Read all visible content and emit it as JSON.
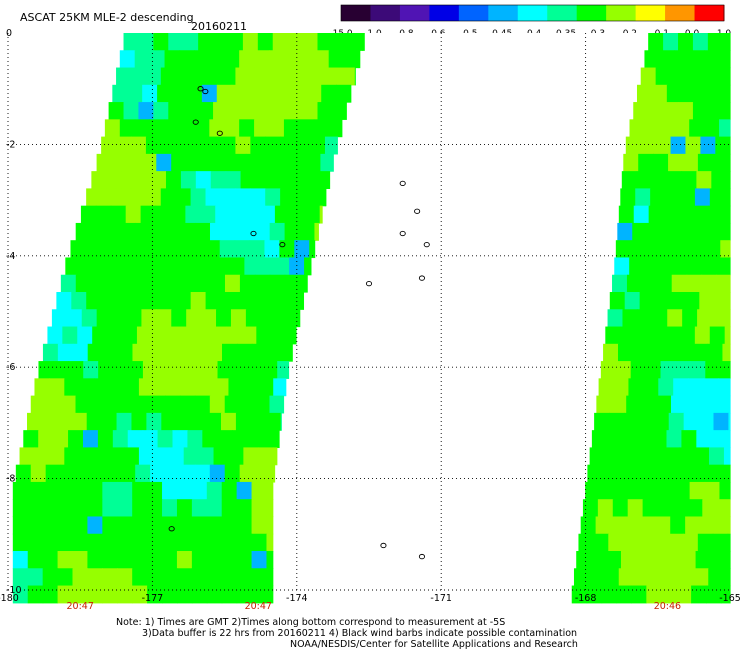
{
  "header": {
    "title": "ASCAT 25KM MLE-2 descending",
    "date": "20160211"
  },
  "colorbar": {
    "labels": [
      "-15.0",
      "-1.0",
      "-0.8",
      "-0.6",
      "-0.5",
      "-0.45",
      "-0.4",
      "-0.35",
      "-0.3",
      "-0.2",
      "-0.1",
      "0.0",
      "1.0"
    ],
    "colors": [
      "#280032",
      "#3c0a78",
      "#5014b4",
      "#0000e6",
      "#0064ff",
      "#00b4ff",
      "#00ffff",
      "#00ff96",
      "#00ff00",
      "#96ff00",
      "#ffff00",
      "#ff9600",
      "#ff0000"
    ]
  },
  "footer": {
    "note_line1": "Note: 1) Times are GMT 2)Times along bottom correspond to measurement at -5S",
    "note_line2": "3)Data buffer is 22 hrs from 20160211 4) Black wind barbs indicate possible contamination",
    "note_line3": "NOAA/NESDIS/Center for Satellite Applications and Research"
  },
  "chart_data": {
    "type": "heatmap",
    "title": "ASCAT 25KM MLE-2 descending",
    "subtitle": "20160211",
    "x_ticks": [
      -180,
      -177,
      -174,
      -171,
      -168,
      -165
    ],
    "x_tick_labels": [
      "-180",
      "-177",
      "-174",
      "-171",
      "-168",
      "-165"
    ],
    "y_ticks": [
      0,
      -2,
      -4,
      -6,
      -8,
      -10
    ],
    "y_tick_labels": [
      "0",
      "-2",
      "-4",
      "-6",
      "-8",
      "-10"
    ],
    "xlim": [
      -180,
      -165
    ],
    "ylim": [
      -10,
      0
    ],
    "grid": true,
    "time_labels": [
      {
        "lon": -178.5,
        "text": "20:47"
      },
      {
        "lon": -174.8,
        "text": "20:47"
      },
      {
        "lon": -166.3,
        "text": "20:46"
      }
    ],
    "swaths": [
      {
        "edges": [
          [
            0,
            -177.6,
            -172.6
          ],
          [
            -2,
            -178.1,
            -173.2
          ],
          [
            -4,
            -178.8,
            -173.7
          ],
          [
            -6,
            -179.4,
            -174.2
          ],
          [
            -8,
            -179.9,
            -174.5
          ],
          [
            -10,
            -179.9,
            -174.5
          ]
        ]
      },
      {
        "edges": [
          [
            0,
            -166.7,
            -165.0
          ],
          [
            -2,
            -167.2,
            -165.0
          ],
          [
            -4,
            -167.4,
            -165.0
          ],
          [
            -6,
            -167.7,
            -165.0
          ],
          [
            -8,
            -168.0,
            -165.0
          ],
          [
            -10,
            -168.3,
            -165.0
          ]
        ]
      }
    ],
    "islands": [
      [
        -176.0,
        -1.0
      ],
      [
        -175.9,
        -1.05
      ],
      [
        -176.1,
        -1.6
      ],
      [
        -175.6,
        -1.8
      ],
      [
        -174.9,
        -3.6
      ],
      [
        -174.3,
        -3.8
      ],
      [
        -171.8,
        -2.7
      ],
      [
        -171.5,
        -3.2
      ],
      [
        -171.8,
        -3.6
      ],
      [
        -171.3,
        -3.8
      ],
      [
        -172.5,
        -4.5
      ],
      [
        -171.4,
        -4.4
      ],
      [
        -172.2,
        -9.2
      ],
      [
        -171.4,
        -9.4
      ],
      [
        -176.6,
        -8.9
      ]
    ]
  }
}
